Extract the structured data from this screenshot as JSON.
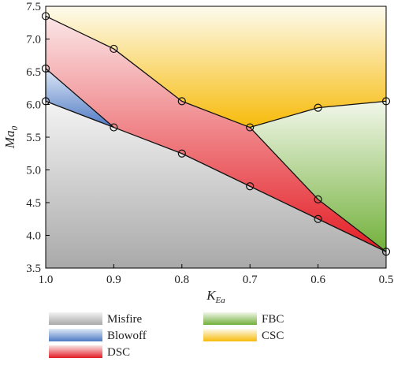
{
  "chart_data": {
    "type": "area",
    "title": "",
    "xlabel": "K",
    "xlabel_sub": "Ea",
    "ylabel": "Ma",
    "ylabel_sub": "0",
    "x_reversed": true,
    "xlim": [
      1.0,
      0.5
    ],
    "ylim": [
      3.5,
      7.5
    ],
    "xticks": [
      "1.0",
      "0.9",
      "0.8",
      "0.7",
      "0.6",
      "0.5"
    ],
    "xtick_values": [
      1.0,
      0.9,
      0.8,
      0.7,
      0.6,
      0.5
    ],
    "yticks": [
      "3.5",
      "4.0",
      "4.5",
      "5.0",
      "5.5",
      "6.0",
      "6.5",
      "7.0",
      "7.5"
    ],
    "ytick_values": [
      3.5,
      4.0,
      4.5,
      5.0,
      5.5,
      6.0,
      6.5,
      7.0,
      7.5
    ],
    "grid": false,
    "legend_position": "bottom",
    "boundaries": {
      "lower": {
        "x": [
          1.0,
          0.9,
          0.8,
          0.7,
          0.6,
          0.5
        ],
        "y": [
          6.05,
          5.65,
          5.25,
          4.75,
          4.25,
          3.75
        ]
      },
      "blowoff_upper": {
        "x": [
          1.0,
          0.9
        ],
        "y": [
          6.55,
          5.65
        ]
      },
      "dsc_upper": {
        "x": [
          1.0,
          0.9,
          0.8,
          0.7,
          0.6,
          0.5
        ],
        "y": [
          7.35,
          6.85,
          6.05,
          5.65,
          4.55,
          3.75
        ]
      },
      "csc_lower": {
        "x": [
          0.7,
          0.6,
          0.5
        ],
        "y": [
          5.65,
          5.95,
          6.05
        ]
      }
    },
    "regions": [
      {
        "name": "Misfire",
        "color_top": "#f4f4f4",
        "color_bottom": "#a9a9a9"
      },
      {
        "name": "Blowoff",
        "color_top": "#dfe9f7",
        "color_bottom": "#4f79c4"
      },
      {
        "name": "DSC",
        "color_top": "#fbe6e7",
        "color_bottom": "#e31d24"
      },
      {
        "name": "FBC",
        "color_top": "#f2f7ea",
        "color_bottom": "#72b03a"
      },
      {
        "name": "CSC",
        "color_top": "#fdfbee",
        "color_bottom": "#f7bb0a"
      }
    ]
  }
}
